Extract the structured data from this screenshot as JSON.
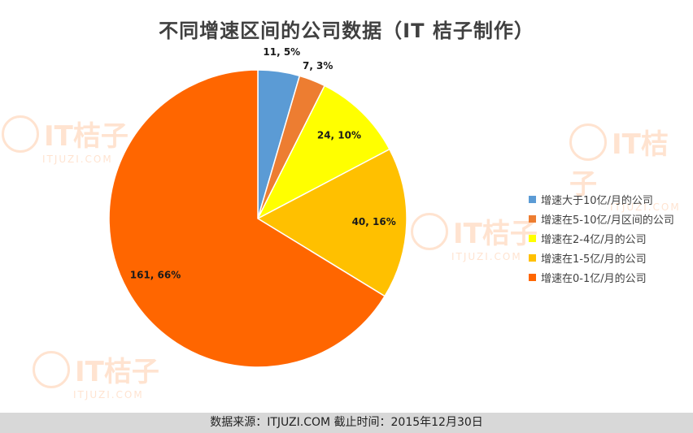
{
  "title": "不同增速区间的公司数据（IT  桔子制作）",
  "footer": "数据来源：ITJUZI.COM 截止时间：2015年12月30日",
  "watermark": {
    "brand": "IT桔子",
    "site": "ITJUZI.COM",
    "color": "#ff6a00"
  },
  "chart_data": {
    "type": "pie",
    "title": "不同增速区间的公司数据（IT  桔子制作）",
    "legend_position": "right",
    "slices": [
      {
        "name": "增速大于10亿/月的公司",
        "value": 11,
        "percent": 5,
        "label": "11, 5%",
        "color": "#5b9bd5"
      },
      {
        "name": "增速在5-10亿/月区间的公司",
        "value": 7,
        "percent": 3,
        "label": "7, 3%",
        "color": "#ed7d31"
      },
      {
        "name": "增速在2-4亿/月的公司",
        "value": 24,
        "percent": 10,
        "label": "24, 10%",
        "color": "#ffff00"
      },
      {
        "name": "增速在1-5亿/月的公司",
        "value": 40,
        "percent": 16,
        "label": "40, 16%",
        "color": "#ffc000"
      },
      {
        "name": "增速在0-1亿/月的公司",
        "value": 161,
        "percent": 66,
        "label": "161, 66%",
        "color": "#ff6600"
      }
    ]
  }
}
